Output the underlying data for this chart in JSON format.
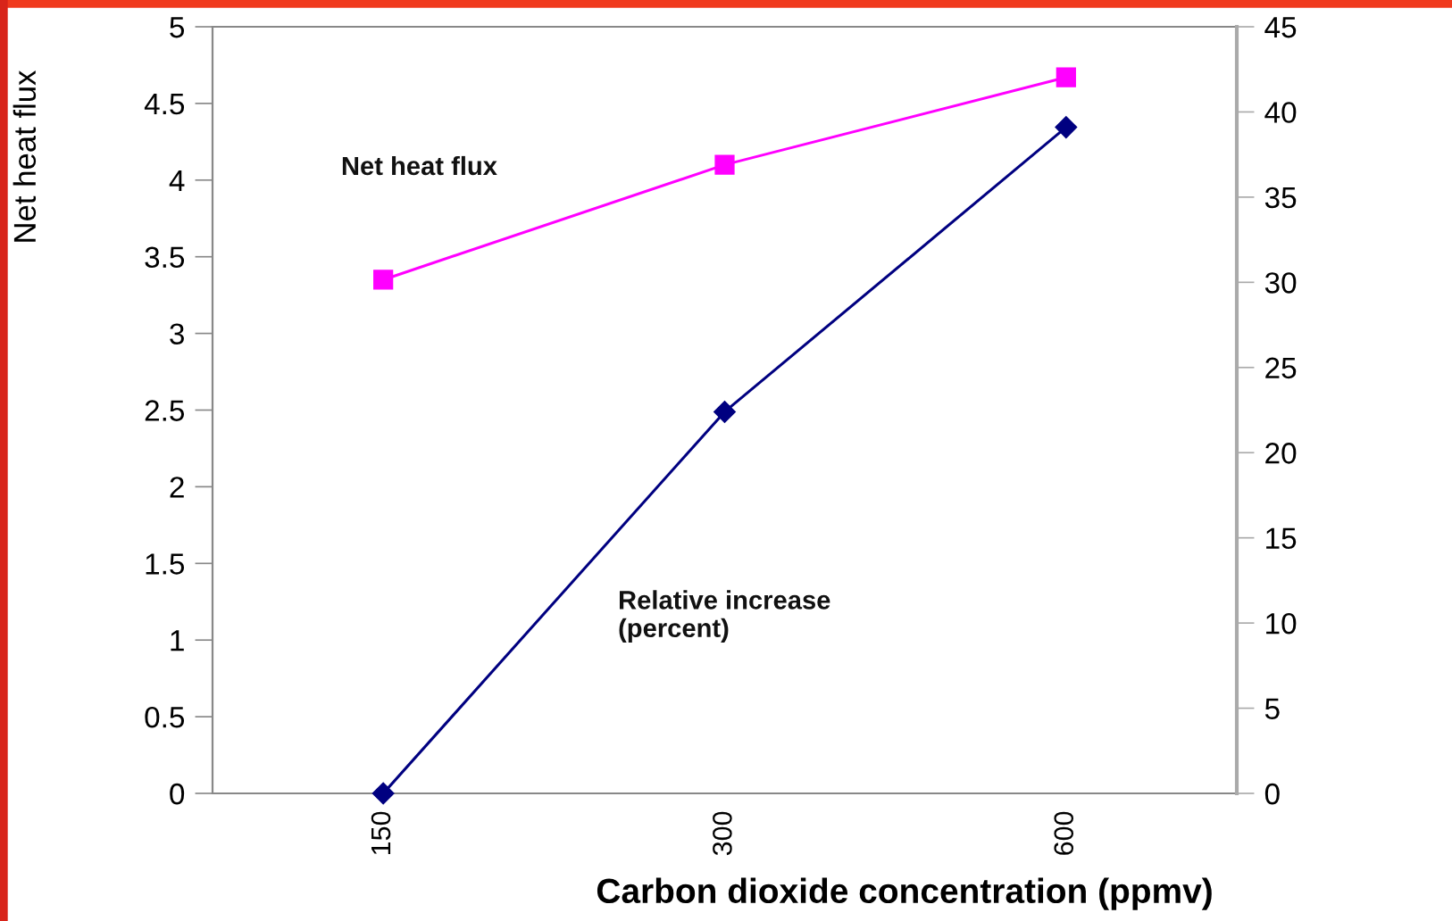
{
  "chart_data": {
    "type": "line",
    "categories": [
      "150",
      "300",
      "600"
    ],
    "xlabel": "Carbon dioxide concentration (ppmv)",
    "ylabel": "Net heat flux",
    "ylim": [
      0,
      5
    ],
    "yticks": [
      0,
      0.5,
      1,
      1.5,
      2,
      2.5,
      3,
      3.5,
      4,
      4.5,
      5
    ],
    "y2lim": [
      0,
      45
    ],
    "y2ticks": [
      0,
      5,
      10,
      15,
      20,
      25,
      30,
      35,
      40,
      45
    ],
    "series": [
      {
        "name": "Net heat flux",
        "color": "#ff00ff",
        "marker": "square",
        "values": [
          3.35,
          4.1,
          4.67
        ]
      },
      {
        "name": "Relative increase\n(percent)",
        "color": "#000080",
        "marker": "diamond",
        "axis": "y2",
        "values": [
          0,
          22.4,
          39.1
        ]
      }
    ],
    "legend": false,
    "grid": false
  }
}
